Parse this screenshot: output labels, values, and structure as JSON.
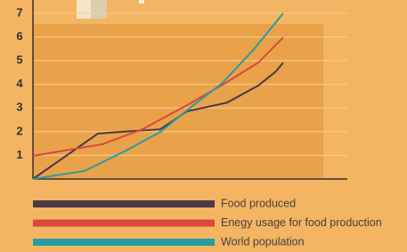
{
  "chart_data": {
    "type": "line",
    "xlim": [
      0,
      100
    ],
    "ylim": [
      0,
      7
    ],
    "yticks": [
      1,
      2,
      3,
      4,
      5,
      6,
      7
    ],
    "grid": true,
    "series": [
      {
        "name": "Food produced",
        "color": "#4b3a46",
        "x": [
          0,
          20.7,
          32,
          40.5,
          49,
          61.8,
          71.7,
          77.3,
          79.6
        ],
        "values": [
          0,
          1.92,
          2.03,
          2.1,
          2.86,
          3.23,
          3.95,
          4.55,
          4.92
        ]
      },
      {
        "name": "Enegy usage for food production",
        "color": "#d9483b",
        "x": [
          0,
          22.1,
          34.8,
          49,
          60.3,
          71.7,
          79.6
        ],
        "values": [
          0.98,
          1.47,
          2.1,
          3.12,
          3.98,
          4.92,
          5.98
        ]
      },
      {
        "name": "World population",
        "color": "#2a9ba1",
        "x": [
          0,
          16.4,
          29.2,
          40.5,
          50.4,
          60.3,
          70.3,
          79.6
        ],
        "values": [
          0,
          0.34,
          1.17,
          1.99,
          3.05,
          4.06,
          5.49,
          7.0
        ]
      }
    ]
  }
}
